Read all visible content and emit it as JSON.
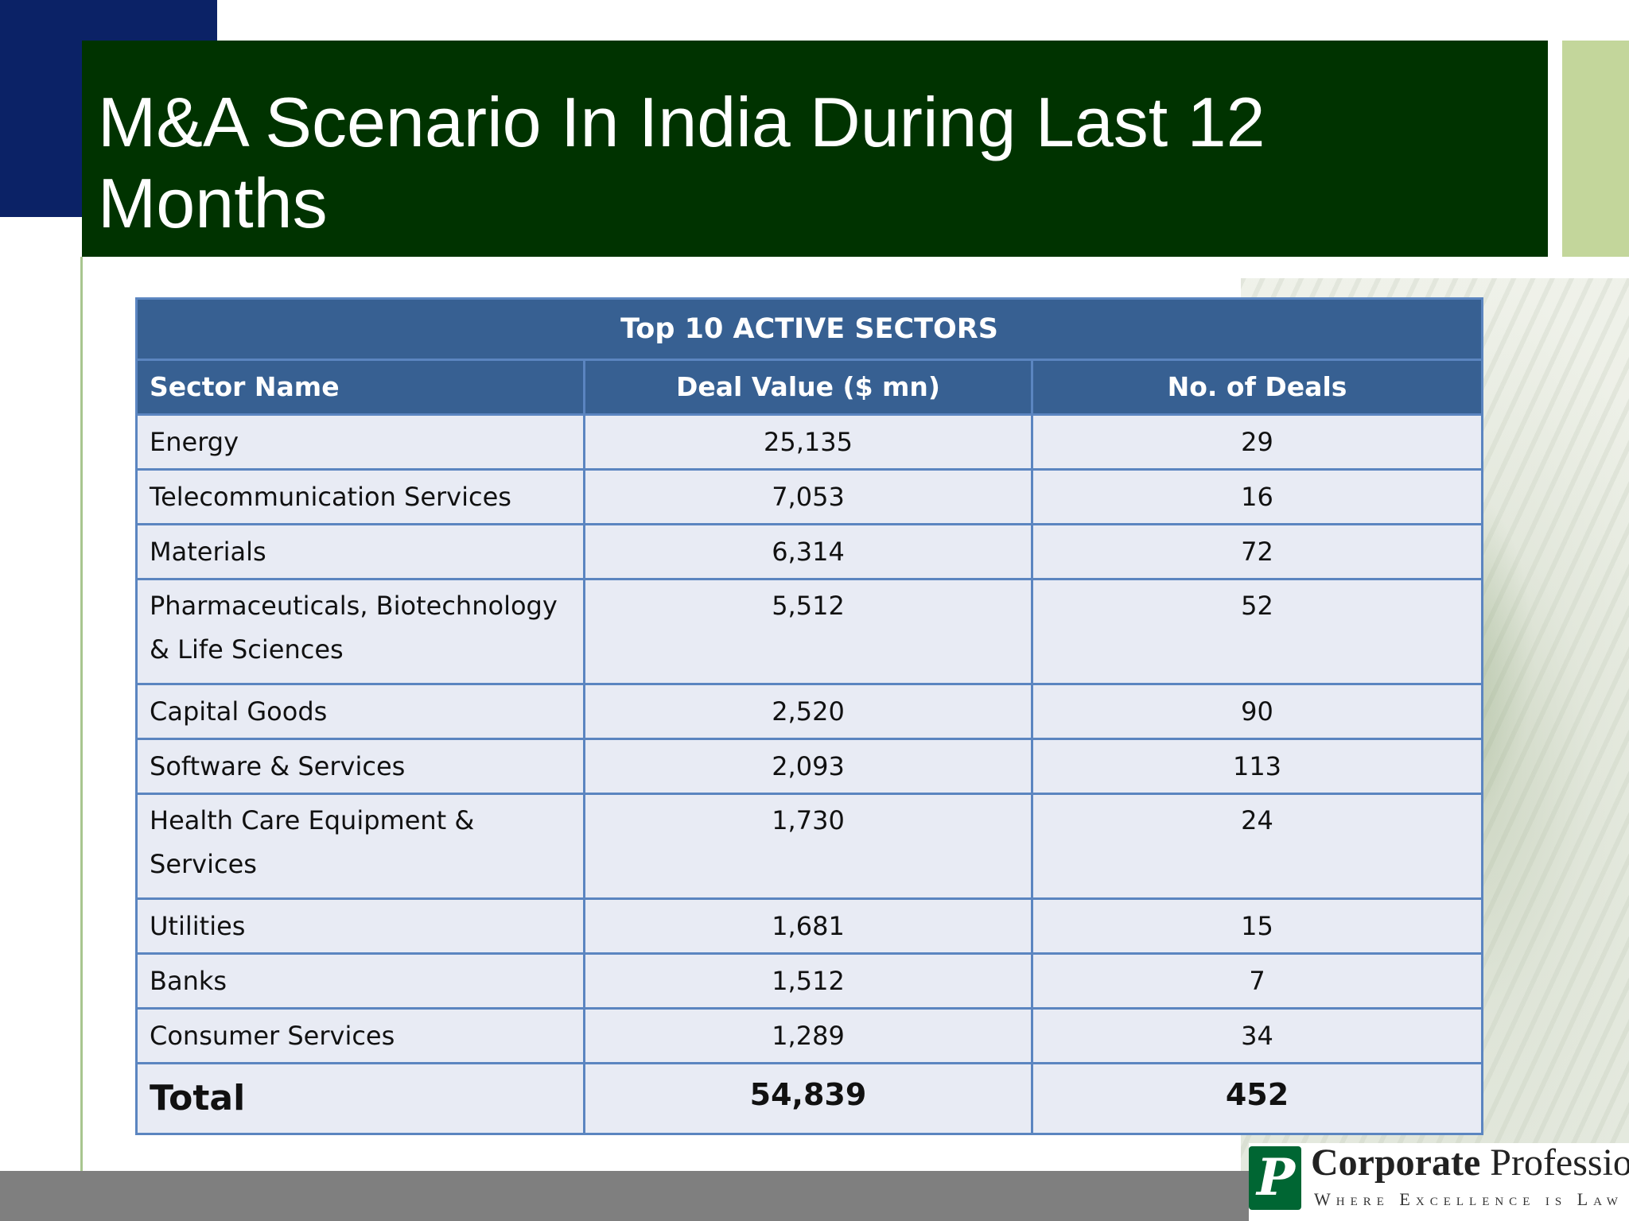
{
  "slide": {
    "title": "M&A Scenario In India During Last 12 Months"
  },
  "table": {
    "caption": "Top 10 ACTIVE SECTORS",
    "headers": [
      "Sector Name",
      "Deal Value ($ mn)",
      "No. of Deals"
    ],
    "rows": [
      [
        "Energy",
        "25,135",
        "29"
      ],
      [
        "Telecommunication Services",
        "7,053",
        "16"
      ],
      [
        "Materials",
        "6,314",
        "72"
      ],
      [
        "Pharmaceuticals, Biotechnology & Life Sciences",
        "5,512",
        "52"
      ],
      [
        "Capital Goods",
        "2,520",
        "90"
      ],
      [
        "Software & Services",
        "2,093",
        "113"
      ],
      [
        "Health Care Equipment & Services",
        "1,730",
        "24"
      ],
      [
        "Utilities",
        "1,681",
        "15"
      ],
      [
        "Banks",
        "1,512",
        "7"
      ],
      [
        "Consumer Services",
        "1,289",
        "34"
      ]
    ],
    "total": [
      "Total",
      "54,839",
      "452"
    ]
  },
  "logo": {
    "mark": "P",
    "name_bold": "Corporate",
    "name_regular": " Professionals",
    "tagline": "Where Excellence is Law"
  },
  "colors": {
    "title_band": "#003300",
    "header_fill": "#376092",
    "row_fill": "#e8ebf4",
    "border": "#5b85c0",
    "navy_block": "#0b2266",
    "accent_bar": "#c3d69b",
    "footer_bar": "#7f7f7f"
  }
}
